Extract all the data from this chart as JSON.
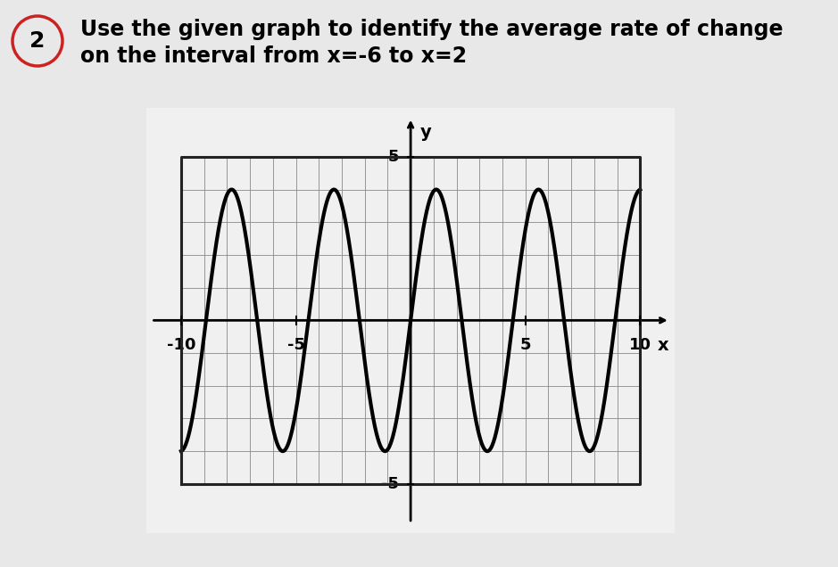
{
  "title_line1": "Use the given graph to identify the average rate of change",
  "title_line2": "on the interval from x=-6 to x=2",
  "number_label": "2.",
  "xlabel": "x",
  "ylabel": "y",
  "xlim": [
    -11.5,
    11.5
  ],
  "ylim": [
    -6.5,
    6.5
  ],
  "plot_xlim": [
    -10,
    10
  ],
  "plot_ylim": [
    -5,
    5
  ],
  "xtick_labels": {
    "-10": "-10",
    "-5": "-5",
    "5": "5",
    "10": "10"
  },
  "ytick_labels": {
    "5": "5",
    "-5": "-5"
  },
  "grid_color": "#888888",
  "curve_color": "#000000",
  "curve_amplitude": 4.0,
  "curve_k": 0.4488,
  "background_color": "#e8e8e8",
  "plot_bg_color": "#f0f0f0",
  "circle_color": "#cc2222",
  "number_circle_text": "2",
  "fig_bg_color": "#e8e8e8",
  "arrow_color": "#000000",
  "border_color": "#222222",
  "text_color": "#000000",
  "title_fontsize": 17,
  "tick_fontsize": 13,
  "axis_label_fontsize": 14
}
